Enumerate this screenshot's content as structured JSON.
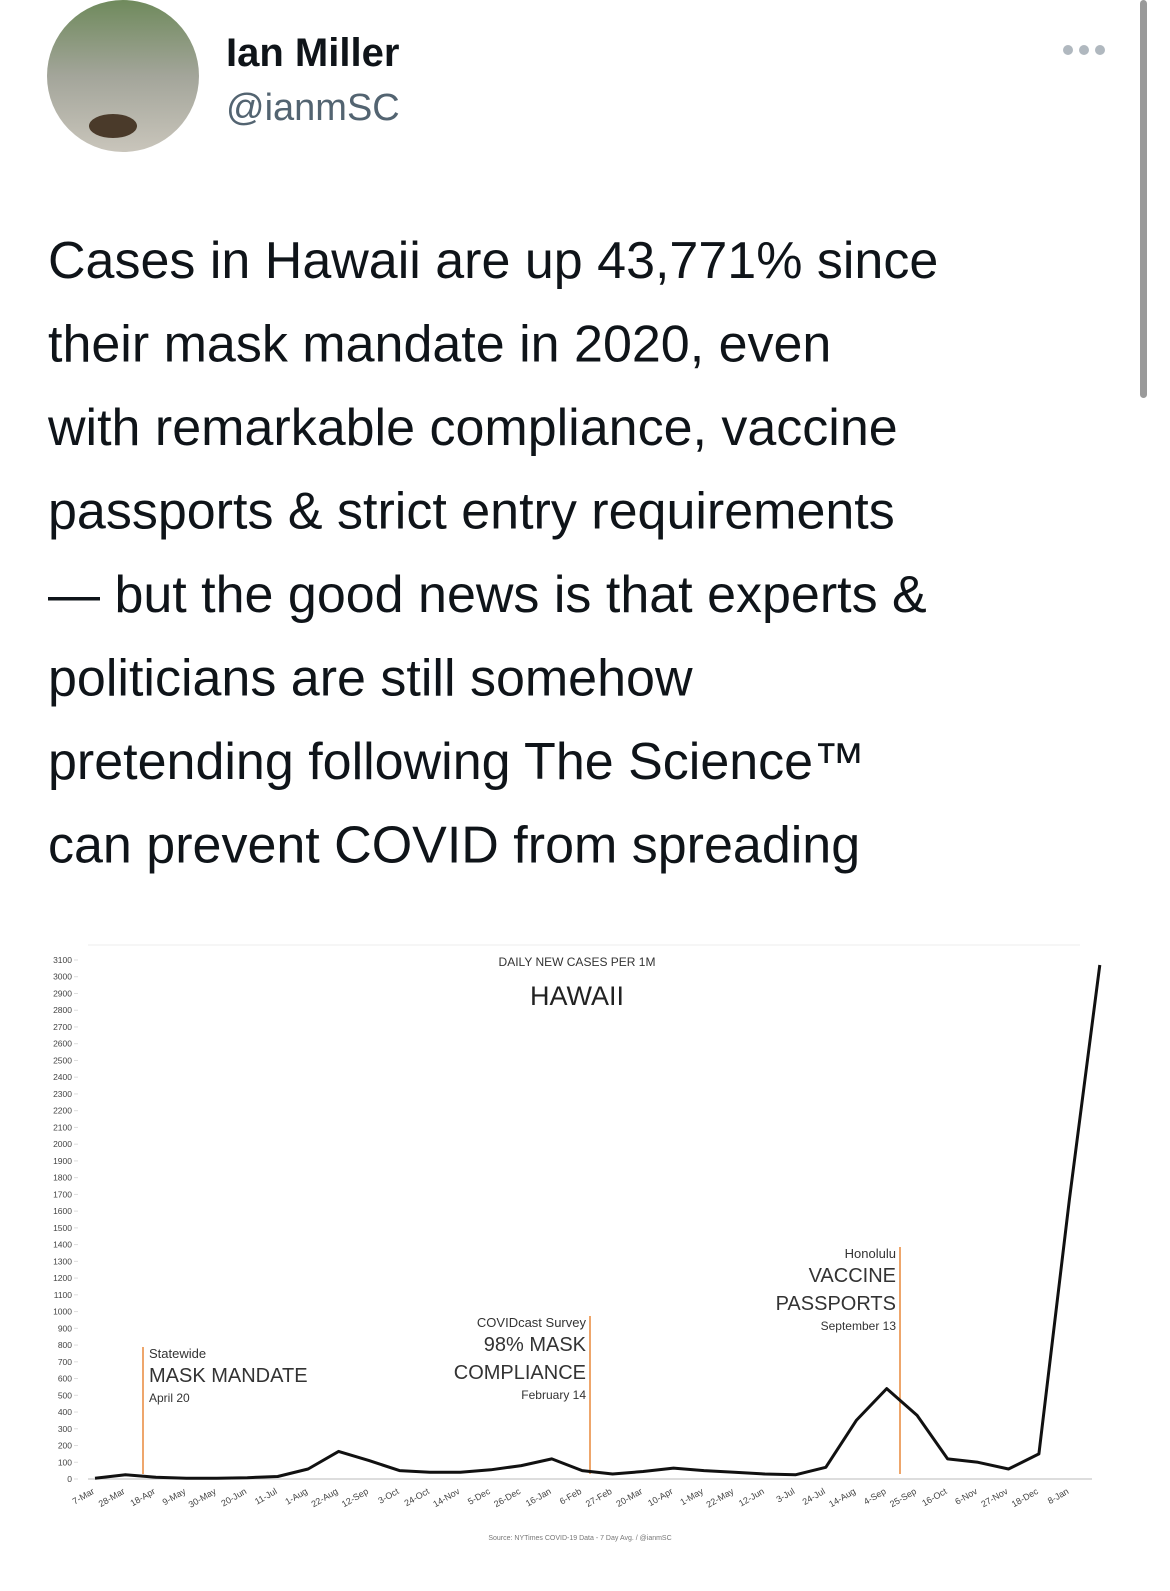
{
  "tweet": {
    "name": "Ian Miller",
    "handle": "@ianmSC",
    "text_lines": [
      "Cases in Hawaii are up 43,771% since",
      "their mask mandate in 2020, even",
      "with remarkable compliance, vaccine",
      "passports & strict entry requirements",
      "— but the good news is that experts &",
      "politicians are still somehow",
      "pretending following The Science™",
      "can prevent COVID from spreading"
    ]
  },
  "chart_data": {
    "type": "line",
    "title": "HAWAII",
    "subtitle": "DAILY NEW CASES PER 1M",
    "source": "Source: NYTimes COVID-19 Data - 7 Day Avg. / @ianmSC",
    "categories": [
      "7-Mar",
      "28-Mar",
      "18-Apr",
      "9-May",
      "30-May",
      "20-Jun",
      "11-Jul",
      "1-Aug",
      "22-Aug",
      "12-Sep",
      "3-Oct",
      "24-Oct",
      "14-Nov",
      "5-Dec",
      "26-Dec",
      "16-Jan",
      "6-Feb",
      "27-Feb",
      "20-Mar",
      "10-Apr",
      "1-May",
      "22-May",
      "12-Jun",
      "3-Jul",
      "24-Jul",
      "14-Aug",
      "4-Sep",
      "25-Sep",
      "16-Oct",
      "6-Nov",
      "27-Nov",
      "18-Dec",
      "8-Jan",
      null
    ],
    "values": [
      5,
      25,
      10,
      5,
      5,
      8,
      15,
      60,
      165,
      110,
      50,
      40,
      40,
      55,
      80,
      120,
      50,
      30,
      45,
      65,
      50,
      40,
      30,
      25,
      70,
      350,
      540,
      380,
      120,
      100,
      60,
      150,
      1670,
      3070
    ],
    "color": "#111111",
    "ylim": [
      0,
      3100
    ],
    "yticks": [
      0,
      100,
      200,
      300,
      400,
      500,
      600,
      700,
      800,
      900,
      1000,
      1100,
      1200,
      1300,
      1400,
      1500,
      1600,
      1700,
      1800,
      1900,
      2000,
      2100,
      2200,
      2300,
      2400,
      2500,
      2600,
      2700,
      2800,
      2900,
      3000,
      3100
    ],
    "grid": false,
    "annotation_color": "#e8883a",
    "annotations": [
      {
        "top": "Statewide",
        "lines": [
          "MASK MANDATE"
        ],
        "date": "April 20"
      },
      {
        "top": "COVIDcast Survey",
        "lines": [
          "98% MASK",
          "COMPLIANCE"
        ],
        "date": "February 14"
      },
      {
        "top": "Honolulu",
        "lines": [
          "VACCINE",
          "PASSPORTS"
        ],
        "date": "September 13"
      }
    ]
  }
}
